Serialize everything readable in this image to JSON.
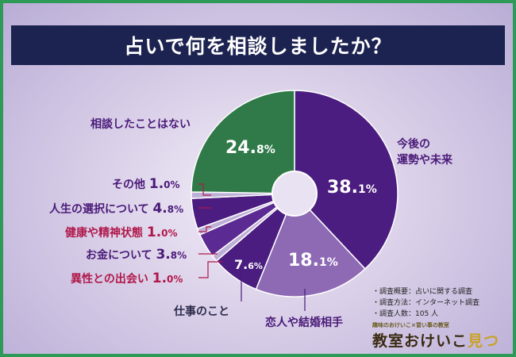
{
  "title": "占いで何を相談しましたか？",
  "chart_data": {
    "type": "pie",
    "title": "占いで何を相談しましたか？",
    "slices": [
      {
        "label": "今後の運勢や未来",
        "value": 38.1,
        "color": "#4b1d80"
      },
      {
        "label": "恋人や結婚相手",
        "value": 18.1,
        "color": "#8e6ab5"
      },
      {
        "label": "仕事のこと",
        "value": 7.6,
        "color": "#4b1d80"
      },
      {
        "label": "異性との出会い",
        "value": 1.0,
        "color": "#bdb0d6"
      },
      {
        "label": "お金について",
        "value": 3.8,
        "color": "#5b2a92"
      },
      {
        "label": "健康や精神状態",
        "value": 1.0,
        "color": "#bdb0d6"
      },
      {
        "label": "人生の選択について",
        "value": 4.8,
        "color": "#4b1d80"
      },
      {
        "label": "その他",
        "value": 1.0,
        "color": "#bdb0d6"
      },
      {
        "label": "相談したことはない",
        "value": 24.8,
        "color": "#2f7a48"
      }
    ]
  },
  "labels": {
    "l38": "今後の\n運勢や未来",
    "l18": "恋人や結婚相手",
    "l76": "仕事のこと",
    "l1a_name": "異性との出会い",
    "l1a_int": "1.",
    "l1a_dec": "0%",
    "l38m_name": "お金について",
    "l38m_int": "3.",
    "l38m_dec": "8%",
    "l1b_name": "健康や精神状態",
    "l1b_int": "1.",
    "l1b_dec": "0%",
    "l48_name": "人生の選択について",
    "l48_int": "4.",
    "l48_dec": "8%",
    "l1c_name": "その他",
    "l1c_int": "1.",
    "l1c_dec": "0%",
    "lnone": "相談したことはない"
  },
  "inner": {
    "p38_int": "38.",
    "p38_dec": "1%",
    "p18_int": "18.",
    "p18_dec": "1%",
    "p76_int": "7.",
    "p76_dec": "6%",
    "p248_int": "24.",
    "p248_dec": "8%"
  },
  "survey": {
    "line1": "調査概要：占いに関する調査",
    "line2": "調査方法：インターネット調査",
    "line3": "調査人数：105 人"
  },
  "logo": {
    "small": "趣味のおけいこ×習い事の教室",
    "main_a": "教室おけいこ",
    "main_b": "見つけ隊"
  },
  "colors": {
    "frame": "#2e9a57",
    "title_band": "#1c2350",
    "accent_red": "#b0184a",
    "accent_purple": "#4a1a78"
  }
}
